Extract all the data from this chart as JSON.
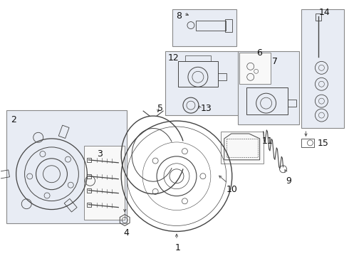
{
  "bg_color": "#ffffff",
  "line_color": "#444444",
  "text_color": "#111111",
  "box_fill": "#e8ecf4",
  "box_edge": "#888888",
  "font_size": 8,
  "label_font_size": 9
}
